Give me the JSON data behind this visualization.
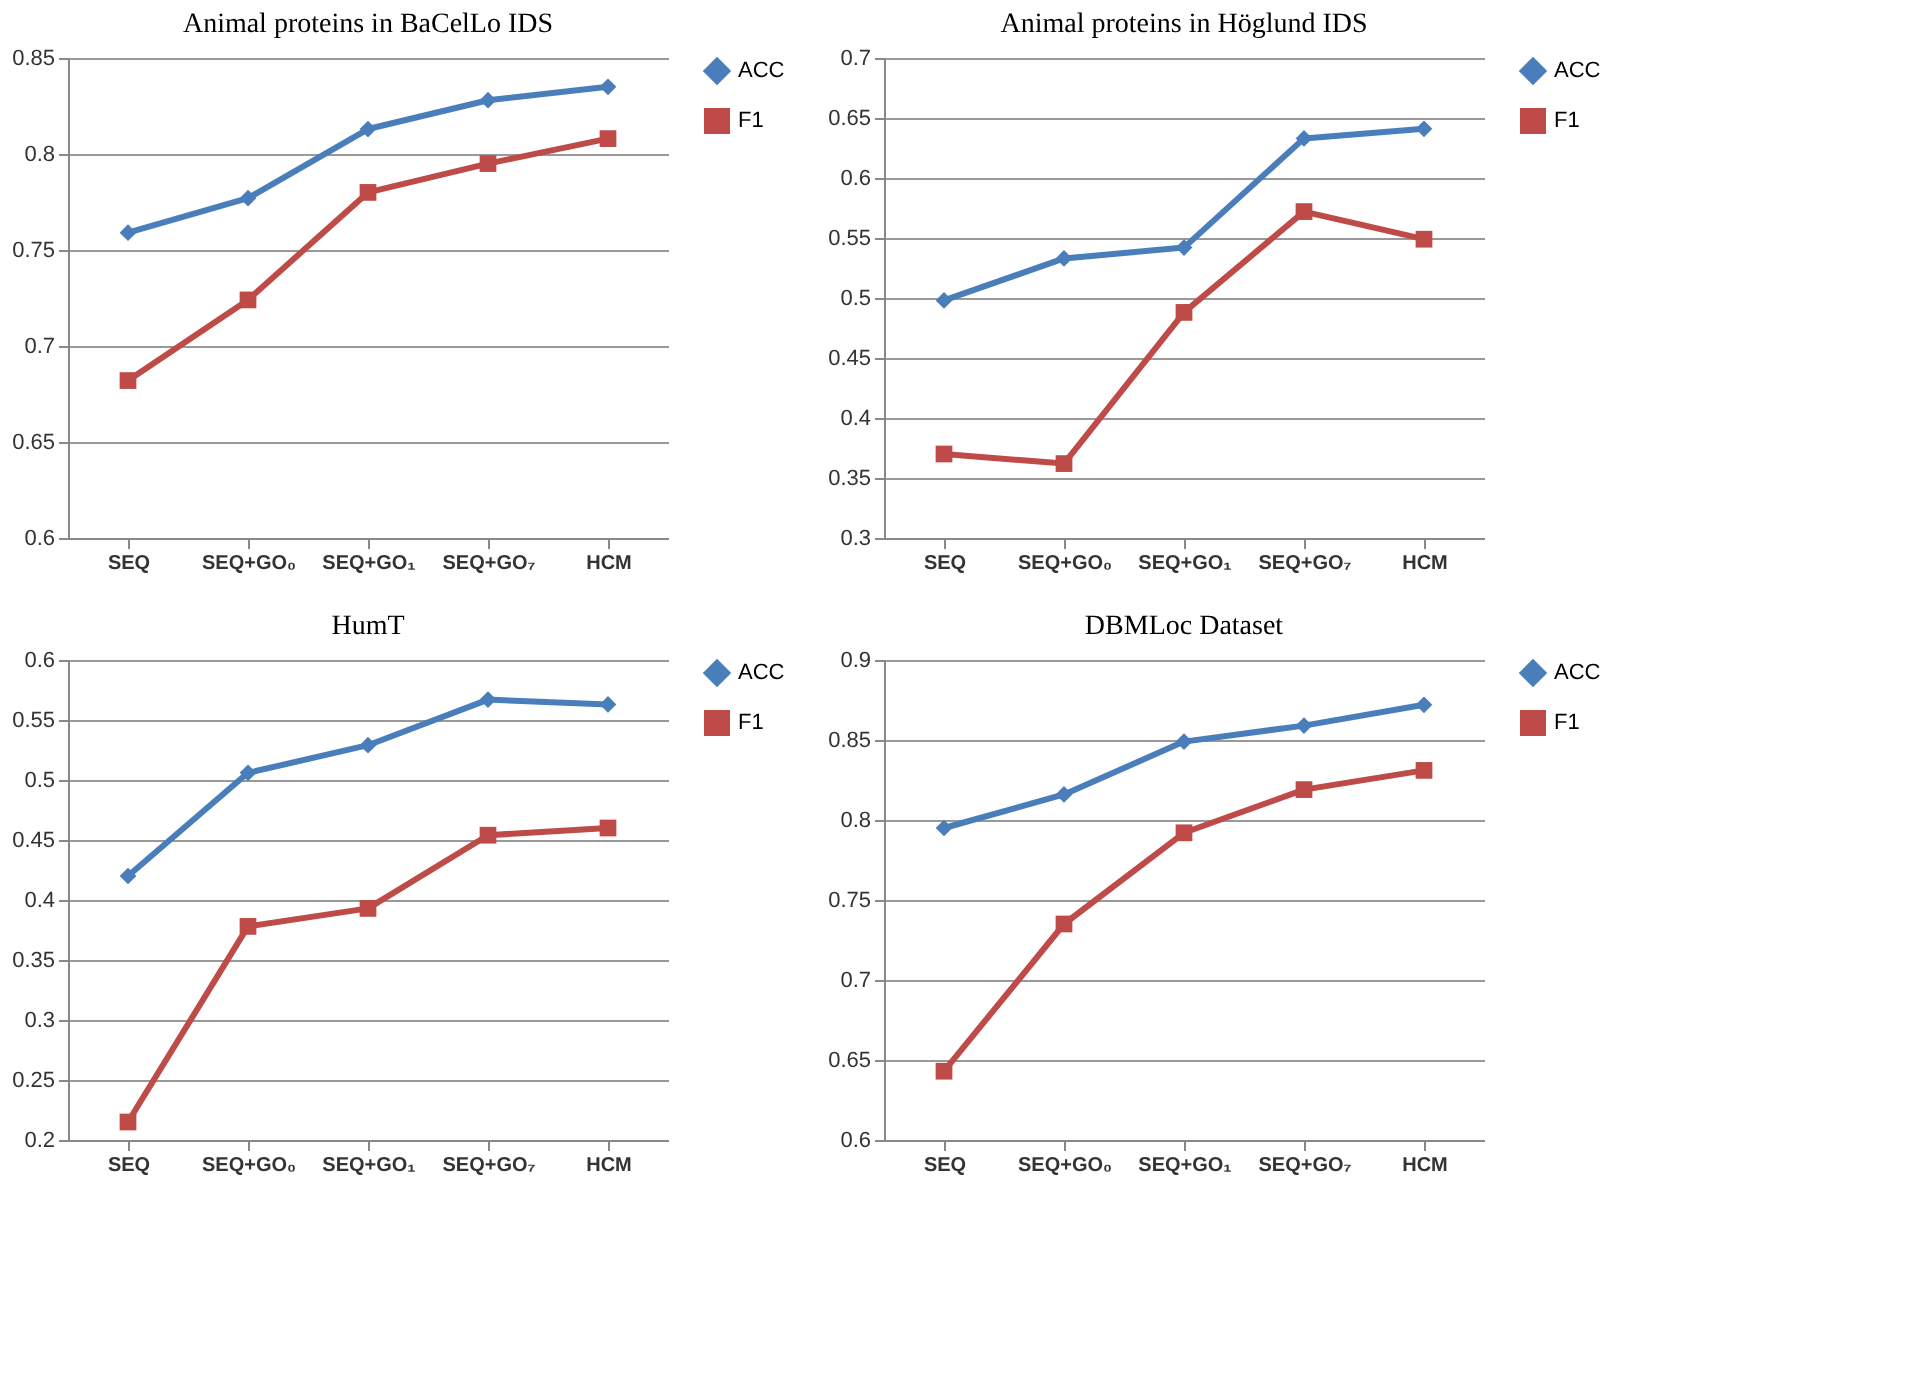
{
  "chart_data": [
    {
      "type": "line",
      "title": "Animal proteins in BaCelLo IDS",
      "categories": [
        "SEQ",
        "SEQ+GO₀",
        "SEQ+GO₁",
        "SEQ+GO₇",
        "HCM"
      ],
      "ylim": [
        0.6,
        0.85
      ],
      "yticks": [
        0.6,
        0.65,
        0.7,
        0.75,
        0.8,
        0.85
      ],
      "grid": "y",
      "legend": "right",
      "line_style": "solid",
      "series": [
        {
          "name": "ACC",
          "color": "#4a7ebb",
          "marker": "diamond",
          "values": [
            0.759,
            0.777,
            0.813,
            0.828,
            0.835
          ]
        },
        {
          "name": "F1",
          "color": "#be4b48",
          "marker": "square",
          "values": [
            0.682,
            0.724,
            0.78,
            0.795,
            0.808
          ]
        }
      ]
    },
    {
      "type": "line",
      "title": "Animal proteins in Höglund IDS",
      "categories": [
        "SEQ",
        "SEQ+GO₀",
        "SEQ+GO₁",
        "SEQ+GO₇",
        "HCM"
      ],
      "ylim": [
        0.3,
        0.7
      ],
      "yticks": [
        0.3,
        0.35,
        0.4,
        0.45,
        0.5,
        0.55,
        0.6,
        0.65,
        0.7
      ],
      "grid": "y",
      "legend": "right",
      "line_style": "solid",
      "series": [
        {
          "name": "ACC",
          "color": "#4a7ebb",
          "marker": "diamond",
          "values": [
            0.498,
            0.533,
            0.542,
            0.633,
            0.641
          ]
        },
        {
          "name": "F1",
          "color": "#be4b48",
          "marker": "square",
          "values": [
            0.37,
            0.362,
            0.488,
            0.572,
            0.549
          ]
        }
      ]
    },
    {
      "type": "line",
      "title": "HumT",
      "categories": [
        "SEQ",
        "SEQ+GO₀",
        "SEQ+GO₁",
        "SEQ+GO₇",
        "HCM"
      ],
      "ylim": [
        0.2,
        0.6
      ],
      "yticks": [
        0.2,
        0.25,
        0.3,
        0.35,
        0.4,
        0.45,
        0.5,
        0.55,
        0.6
      ],
      "grid": "y",
      "legend": "right",
      "line_style": "solid",
      "series": [
        {
          "name": "ACC",
          "color": "#4a7ebb",
          "marker": "diamond",
          "values": [
            0.42,
            0.506,
            0.529,
            0.567,
            0.563
          ]
        },
        {
          "name": "F1",
          "color": "#be4b48",
          "marker": "square",
          "values": [
            0.215,
            0.378,
            0.393,
            0.454,
            0.46
          ]
        }
      ]
    },
    {
      "type": "line",
      "title": "DBMLoc Dataset",
      "categories": [
        "SEQ",
        "SEQ+GO₀",
        "SEQ+GO₁",
        "SEQ+GO₇",
        "HCM"
      ],
      "ylim": [
        0.6,
        0.9
      ],
      "yticks": [
        0.6,
        0.65,
        0.7,
        0.75,
        0.8,
        0.85,
        0.9
      ],
      "grid": "y",
      "legend": "right",
      "line_style": "solid",
      "series": [
        {
          "name": "ACC",
          "color": "#4a7ebb",
          "marker": "diamond",
          "values": [
            0.795,
            0.816,
            0.849,
            0.859,
            0.872
          ]
        },
        {
          "name": "F1",
          "color": "#be4b48",
          "marker": "square",
          "values": [
            0.643,
            0.735,
            0.792,
            0.819,
            0.831
          ]
        }
      ]
    }
  ]
}
